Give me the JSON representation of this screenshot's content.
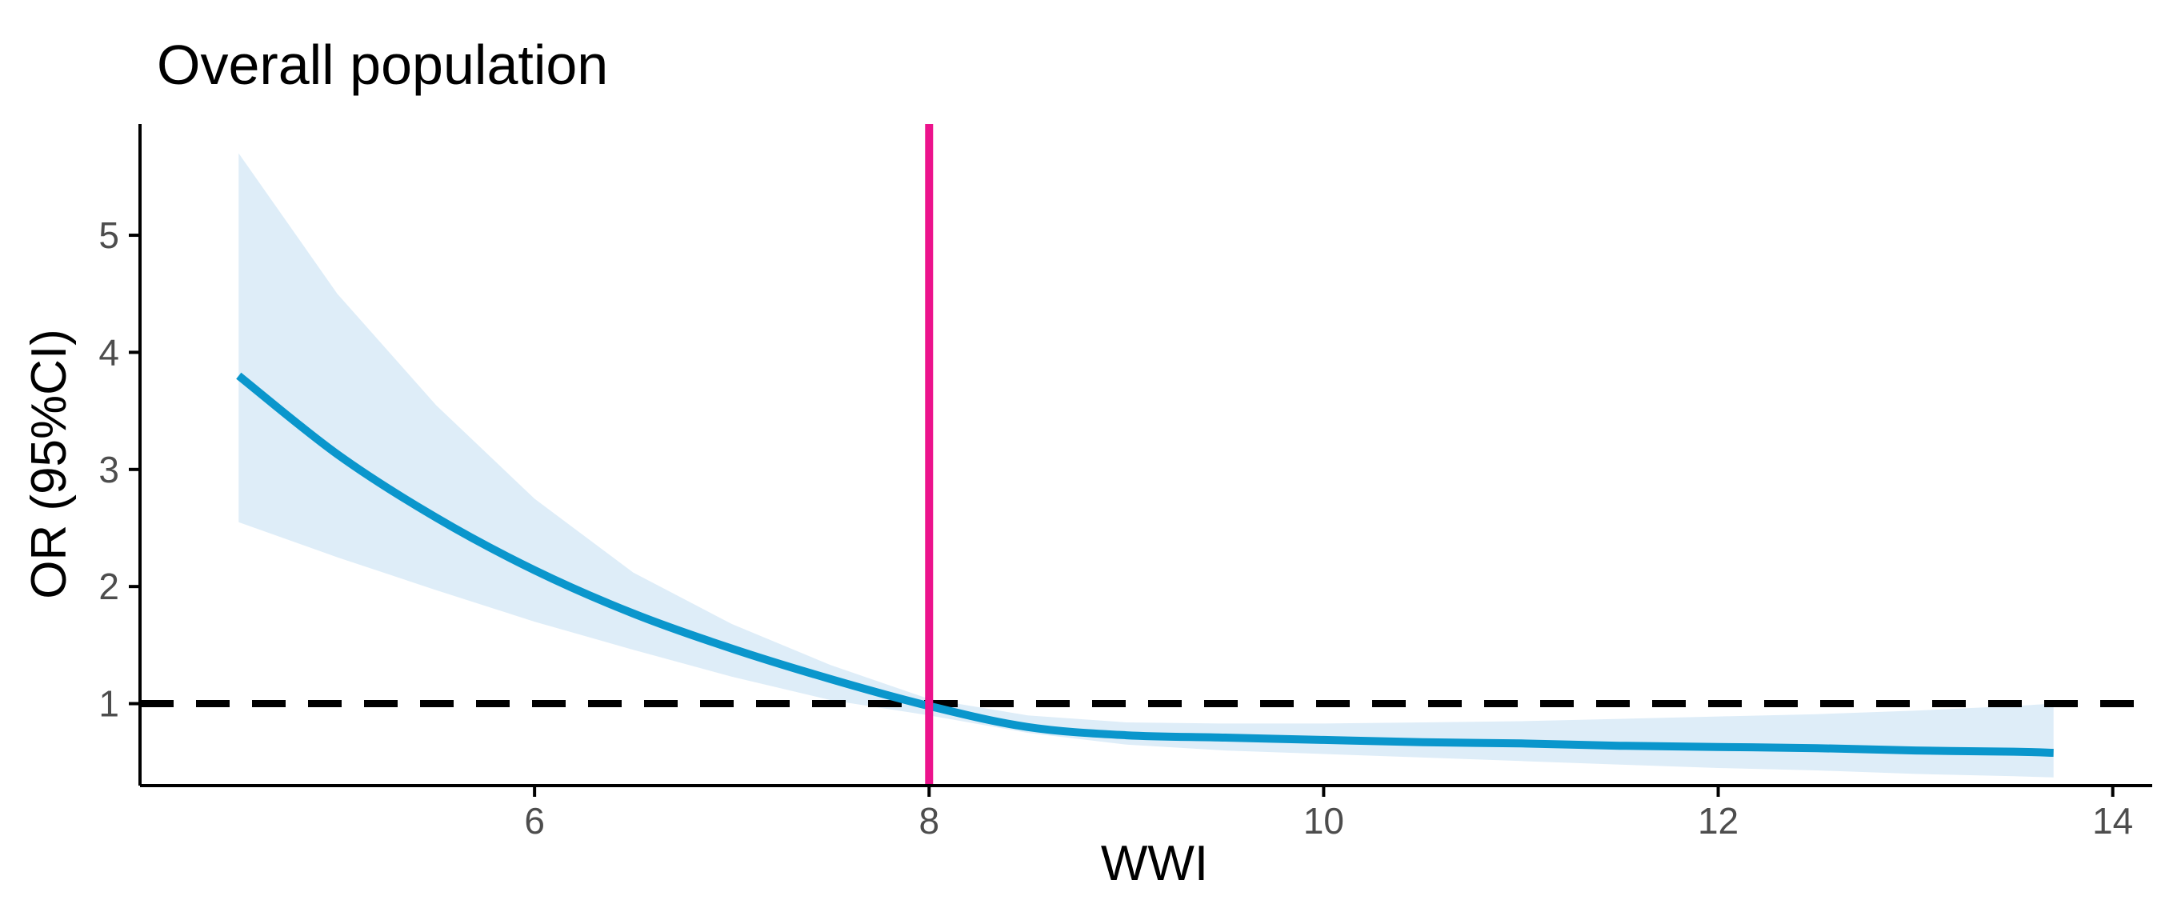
{
  "chart_data": {
    "type": "line",
    "title": "Overall population",
    "xlabel": "WWI",
    "ylabel": "OR (95%CI)",
    "xlim": [
      4.0,
      14.2
    ],
    "ylim": [
      0.3,
      5.95
    ],
    "x_ticks": [
      6,
      8,
      10,
      12,
      14
    ],
    "y_ticks": [
      1,
      2,
      3,
      4,
      5
    ],
    "grid": false,
    "legend": "none",
    "reference_line_y": 1,
    "reference_line_x": 8,
    "colors": {
      "line": "#0a96cc",
      "ci_band": "#deedf8",
      "vertical_line": "#ec138c",
      "reference_line": "#000000",
      "axis": "#000000"
    },
    "series": [
      {
        "x": [
          4.5,
          5.0,
          5.5,
          6.0,
          6.5,
          7.0,
          7.5,
          8.0,
          8.5,
          9.0,
          9.5,
          10.0,
          10.5,
          11.0,
          11.5,
          12.0,
          12.5,
          13.0,
          13.5,
          13.7
        ],
        "y": [
          3.8,
          3.13,
          2.59,
          2.14,
          1.77,
          1.47,
          1.21,
          0.98,
          0.8,
          0.73,
          0.71,
          0.69,
          0.67,
          0.66,
          0.64,
          0.63,
          0.62,
          0.6,
          0.59,
          0.58
        ],
        "lower": [
          2.55,
          2.25,
          1.97,
          1.7,
          1.46,
          1.23,
          1.03,
          0.9,
          0.75,
          0.65,
          0.6,
          0.57,
          0.54,
          0.51,
          0.48,
          0.45,
          0.43,
          0.4,
          0.38,
          0.37
        ],
        "upper": [
          5.7,
          4.5,
          3.55,
          2.75,
          2.12,
          1.68,
          1.33,
          1.04,
          0.9,
          0.84,
          0.83,
          0.83,
          0.84,
          0.85,
          0.87,
          0.89,
          0.91,
          0.94,
          0.98,
          1.0
        ]
      }
    ]
  }
}
